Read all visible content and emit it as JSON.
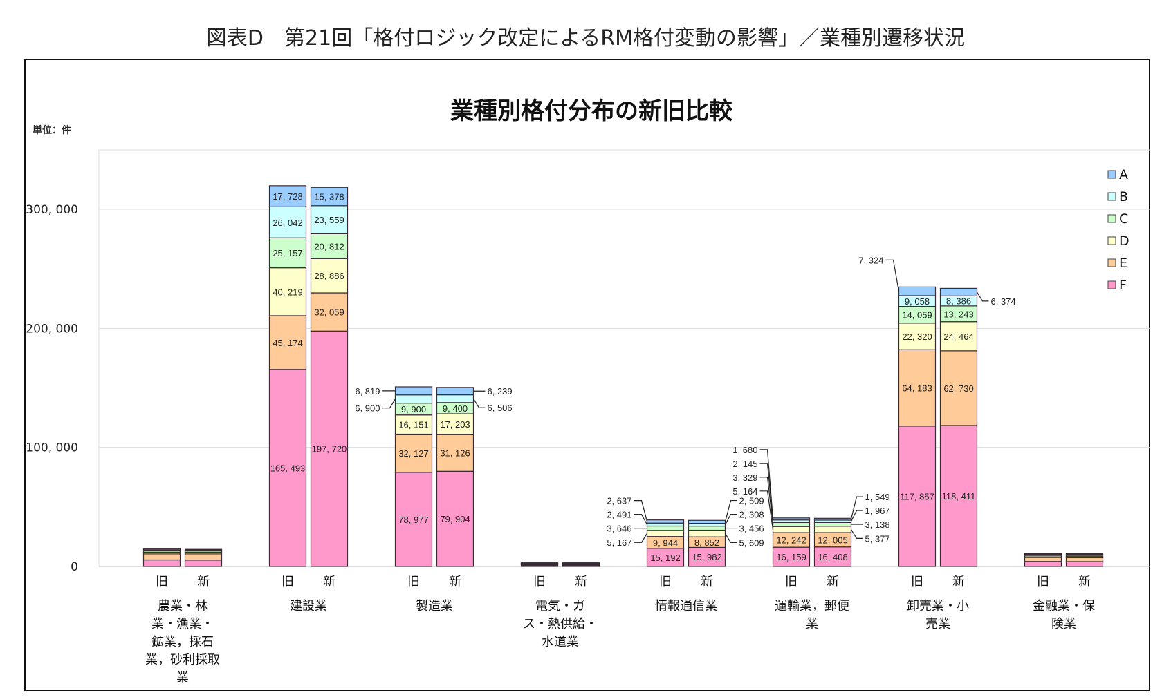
{
  "heading": "図表D　第21回「格付ロジック改定によるRM格付変動の影響」／業種別遷移状況",
  "chart_data": {
    "type": "bar",
    "stacked": true,
    "title": "業種別格付分布の新旧比較",
    "unit_label": "単位：件",
    "ylim": [
      0,
      350000
    ],
    "yticks": [
      0,
      100000,
      200000,
      300000
    ],
    "ytick_labels": [
      "0",
      "100, 000",
      "200, 000",
      "300, 000"
    ],
    "grid": true,
    "legend_position": "right",
    "bar_labels": [
      "旧",
      "新"
    ],
    "series_names": [
      "A",
      "B",
      "C",
      "D",
      "E",
      "F"
    ],
    "colors": {
      "A": "#99ccff",
      "B": "#ccffff",
      "C": "#ccffcc",
      "D": "#ffffcc",
      "E": "#ffcc99",
      "F": "#ff99cc"
    },
    "categories": [
      {
        "name": "農業・林\n業・漁業・\n鉱業，採石\n業，砂利採取\n業",
        "labels_shown": false,
        "old": [
          800,
          700,
          1200,
          1500,
          5000,
          5500
        ],
        "new": [
          700,
          600,
          1100,
          1500,
          5200,
          5300
        ]
      },
      {
        "name": "建設業",
        "labels_shown": true,
        "old": [
          17728,
          26042,
          25157,
          40219,
          45174,
          165493
        ],
        "new": [
          15378,
          23559,
          20812,
          28886,
          32059,
          197720
        ]
      },
      {
        "name": "製造業",
        "labels_shown": true,
        "old": [
          6819,
          6900,
          9900,
          16151,
          32127,
          78977
        ],
        "new": [
          6239,
          6506,
          9400,
          17203,
          31126,
          79904
        ]
      },
      {
        "name": "電気・ガ\nス・熱供給・\n水道業",
        "labels_shown": false,
        "old": [
          300,
          300,
          400,
          500,
          700,
          900
        ],
        "new": [
          300,
          300,
          400,
          500,
          700,
          900
        ]
      },
      {
        "name": "情報通信業",
        "labels_shown": true,
        "old": [
          2637,
          2491,
          3646,
          5167,
          9944,
          15192
        ],
        "new": [
          2509,
          2308,
          3456,
          5609,
          8852,
          15982
        ]
      },
      {
        "name": "運輸業，郵便\n業",
        "labels_shown": true,
        "old": [
          1680,
          2145,
          3329,
          5164,
          12242,
          16159
        ],
        "new": [
          1549,
          1967,
          3138,
          5377,
          12005,
          16408
        ]
      },
      {
        "name": "卸売業・小\n売業",
        "labels_shown": true,
        "old": [
          7324,
          9058,
          14059,
          22320,
          64183,
          117857
        ],
        "new": [
          6374,
          8386,
          13243,
          24464,
          62730,
          118411
        ]
      },
      {
        "name": "金融業・保\n険業",
        "labels_shown": false,
        "old": [
          600,
          600,
          900,
          1300,
          3300,
          4200
        ],
        "new": [
          600,
          600,
          900,
          1300,
          3200,
          4100
        ]
      }
    ]
  }
}
